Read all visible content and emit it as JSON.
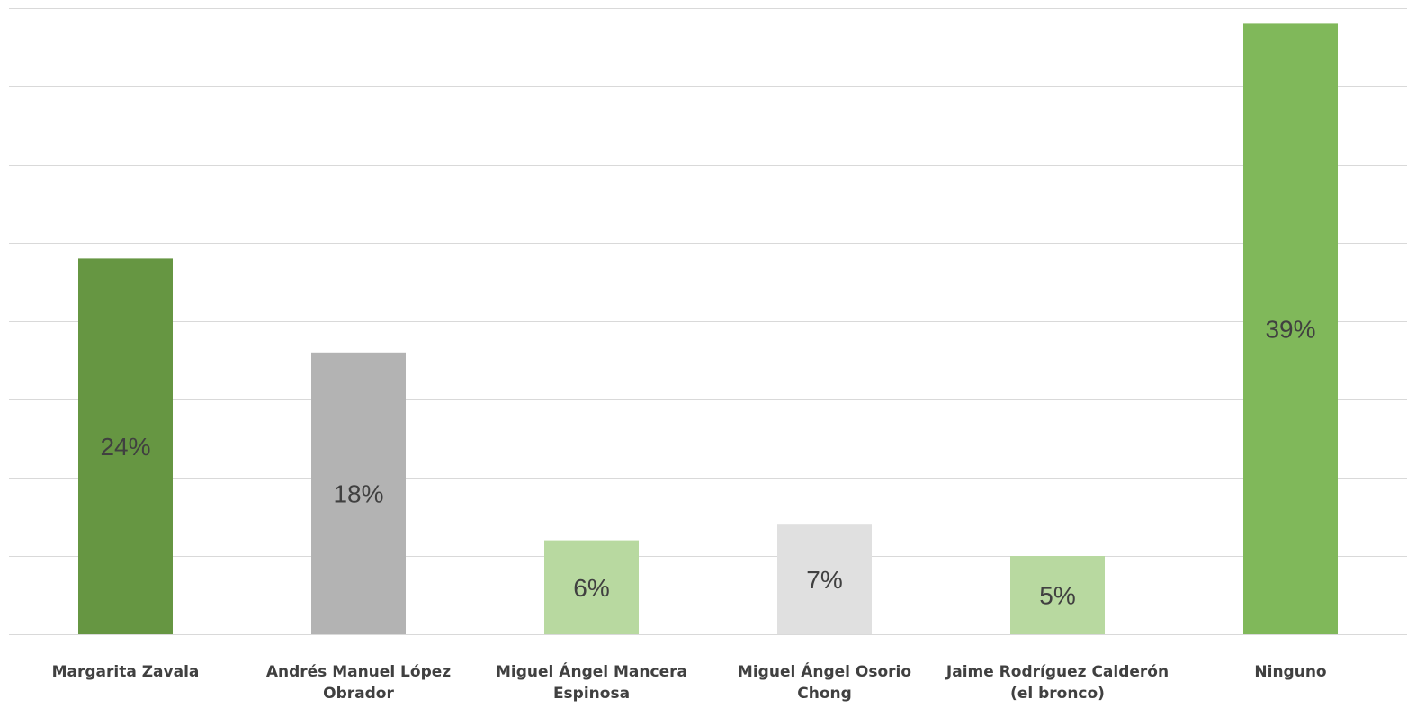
{
  "chart_data": {
    "type": "bar",
    "categories": [
      [
        "Margarita Zavala"
      ],
      [
        "Andrés Manuel López",
        "Obrador"
      ],
      [
        "Miguel  Ángel Mancera",
        "Espinosa"
      ],
      [
        "Miguel Ángel Osorio",
        "Chong"
      ],
      [
        "Jaime Rodríguez Calderón",
        "(el bronco)"
      ],
      [
        "Ninguno"
      ]
    ],
    "values": [
      24,
      18,
      6,
      7,
      5,
      39
    ],
    "value_labels": [
      "24%",
      "18%",
      "6%",
      "7%",
      "5%",
      "39%"
    ],
    "value_suffix": "%",
    "colors": [
      "#669642",
      "#b3b3b3",
      "#b8d9a0",
      "#e0e0e0",
      "#b8d9a0",
      "#80b85a"
    ],
    "ylim": [
      0,
      40
    ],
    "gridlines": 8,
    "grid": true,
    "legend": "none",
    "title": "",
    "xlabel": "",
    "ylabel": ""
  }
}
